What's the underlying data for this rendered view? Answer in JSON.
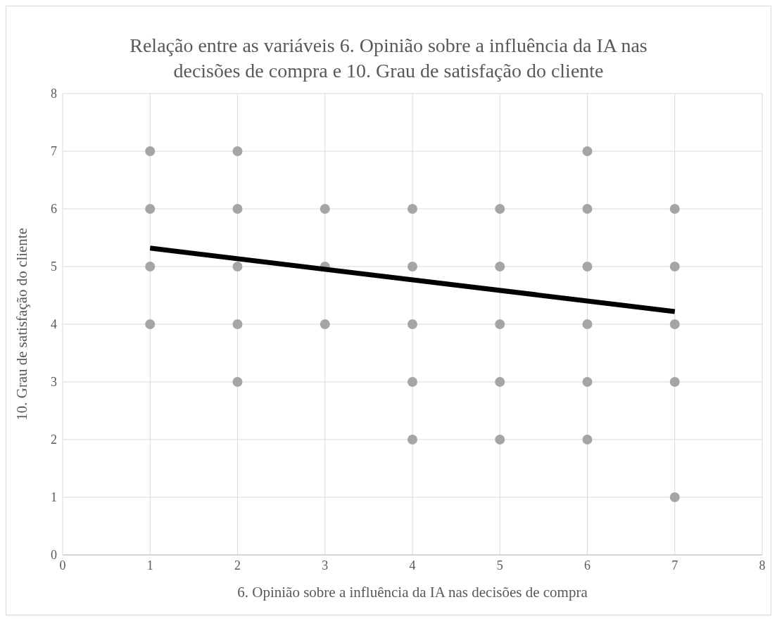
{
  "chart_data": {
    "type": "scatter",
    "title": "Relação entre as variáveis 6. Opinião sobre a influência da IA nas decisões de compra e 10. Grau de satisfação do cliente",
    "xlabel": "6. Opinião sobre a influência da IA nas decisões de compra",
    "ylabel": "10. Grau de satisfação do cliente",
    "series": [
      {
        "color": "#a5a5a5",
        "marker": "circle",
        "x": [
          1,
          1,
          1,
          1,
          2,
          2,
          2,
          2,
          2,
          3,
          3,
          3,
          4,
          4,
          4,
          4,
          4,
          5,
          5,
          5,
          5,
          5,
          6,
          6,
          6,
          6,
          6,
          6,
          7,
          7,
          7,
          7,
          7
        ],
        "values": [
          7,
          6,
          5,
          4,
          7,
          6,
          5,
          4,
          3,
          6,
          5,
          4,
          6,
          5,
          4,
          3,
          2,
          6,
          5,
          4,
          3,
          2,
          7,
          6,
          5,
          4,
          3,
          2,
          6,
          5,
          4,
          3,
          1
        ]
      },
      {
        "type": "line",
        "marker": "none",
        "color": "#000000",
        "x": [
          1,
          7
        ],
        "values": [
          5.32,
          4.22
        ]
      }
    ],
    "xlim": [
      0,
      8
    ],
    "xticks": [
      0,
      1,
      2,
      3,
      4,
      5,
      6,
      7,
      8
    ],
    "ylim": [
      0,
      8
    ],
    "yticks": [
      0,
      1,
      2,
      3,
      4,
      5,
      6,
      7,
      8
    ],
    "grid": true,
    "legend": false
  }
}
